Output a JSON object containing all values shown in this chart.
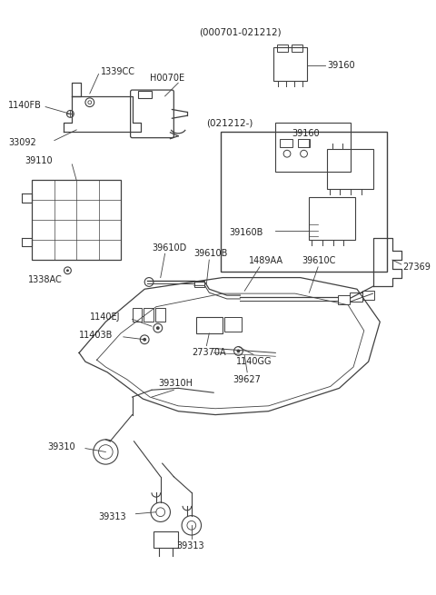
{
  "bg_color": "#ffffff",
  "line_color": "#404040",
  "text_color": "#222222",
  "fig_width": 4.8,
  "fig_height": 6.55,
  "dpi": 100,
  "labels": {
    "header_date1": "(000701-021212)",
    "header_date2": "(021212-)",
    "part_1339CC": "1339CC",
    "part_H0070E": "H0070E",
    "part_1140FB": "1140FB",
    "part_33092": "33092",
    "part_39110": "39110",
    "part_1338AC": "1338AC",
    "part_39160_top": "39160",
    "part_39160_mid": "39160",
    "part_39160B": "39160B",
    "part_39610D": "39610D",
    "part_39610B": "39610B",
    "part_39610C": "39610C",
    "part_1489AA": "1489AA",
    "part_1140EJ": "1140EJ",
    "part_11403B": "11403B",
    "part_27370A": "27370A",
    "part_1140GG": "1140GG",
    "part_39627": "39627",
    "part_27369": "27369",
    "part_39310": "39310",
    "part_39310H": "39310H",
    "part_39313a": "39313",
    "part_39313b": "39313"
  }
}
